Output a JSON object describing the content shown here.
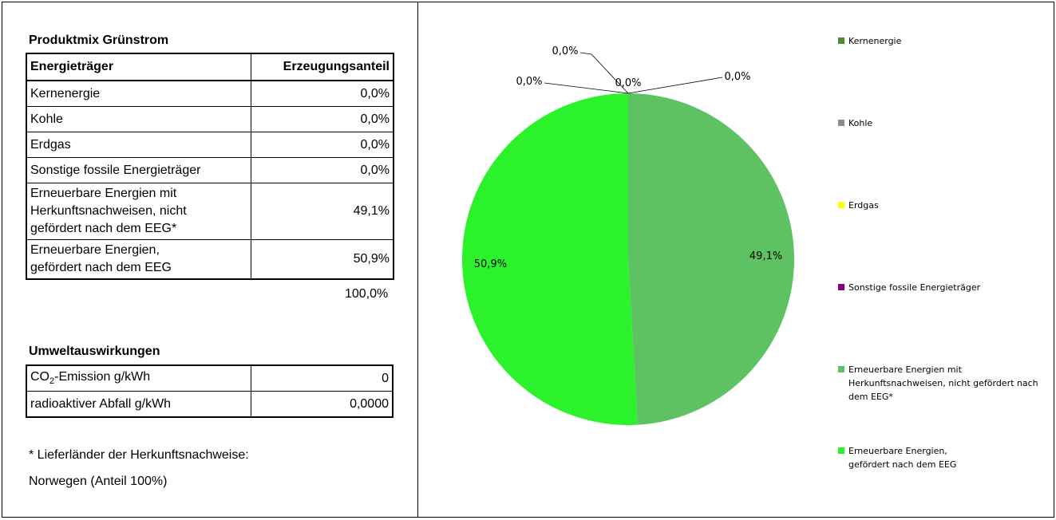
{
  "left": {
    "mix_title": "Produktmix Grünstrom",
    "mix_header": {
      "col1": "Energieträger",
      "col2": "Erzeugungsanteil"
    },
    "mix_rows": [
      {
        "label": "Kernenergie",
        "value": "0,0%"
      },
      {
        "label": "Kohle",
        "value": "0,0%"
      },
      {
        "label": "Erdgas",
        "value": "0,0%"
      },
      {
        "label": "Sonstige fossile Energieträger",
        "value": "0,0%"
      },
      {
        "label_lines": [
          "Erneuerbare Energien mit",
          "Herkunftsnachweisen, nicht",
          "gefördert nach dem EEG*"
        ],
        "value": "49,1%"
      },
      {
        "label_lines": [
          "Erneuerbare Energien,",
          "gefördert nach dem EEG"
        ],
        "value": "50,9%"
      }
    ],
    "total": "100,0%",
    "env_title": "Umweltauswirkungen",
    "env_rows": [
      {
        "label_pre": "CO",
        "label_sub": "2",
        "label_post": "-Emission g/kWh",
        "value": "0"
      },
      {
        "label": "radioaktiver Abfall g/kWh",
        "value": "0,0000"
      }
    ],
    "note_1": "* Lieferländer der Herkunftsnachweise:",
    "note_2": "Norwegen (Anteil 100%)"
  },
  "chart_data": {
    "type": "pie",
    "slices": [
      {
        "name": "Kernenergie",
        "value": 0.0,
        "label": "0,0%",
        "color": "#4a8a3a"
      },
      {
        "name": "Kohle",
        "value": 0.0,
        "label": "0,0%",
        "color": "#8c8c8c"
      },
      {
        "name": "Erdgas",
        "value": 0.0,
        "label": "0,0%",
        "color": "#ffff00"
      },
      {
        "name": "Sonstige fossile Energieträger",
        "value": 0.0,
        "label": "0,0%",
        "color": "#800080"
      },
      {
        "name": "Erneuerbare Energien mit Herkunftsnachweisen, nicht gefördert nach dem EEG*",
        "value": 49.1,
        "label": "49,1%",
        "color": "#5ec262"
      },
      {
        "name": "Erneuerbare Energien, gefördert nach dem EEG",
        "value": 50.9,
        "label": "50,9%",
        "color": "#2cf22c"
      }
    ],
    "legend_position": "right",
    "legend": [
      {
        "lines": [
          "Kernenergie"
        ],
        "color": "#4a8a3a"
      },
      {
        "lines": [
          "Kohle"
        ],
        "color": "#8c8c8c"
      },
      {
        "lines": [
          "Erdgas"
        ],
        "color": "#ffff00"
      },
      {
        "lines": [
          "Sonstige fossile Energieträger"
        ],
        "color": "#800080"
      },
      {
        "lines": [
          "Erneuerbare Energien mit",
          "Herkunftsnachweisen, nicht gefördert nach",
          "dem EEG*"
        ],
        "color": "#5ec262"
      },
      {
        "lines": [
          "Erneuerbare Energien,",
          "gefördert nach dem EEG"
        ],
        "color": "#2cf22c"
      }
    ]
  }
}
